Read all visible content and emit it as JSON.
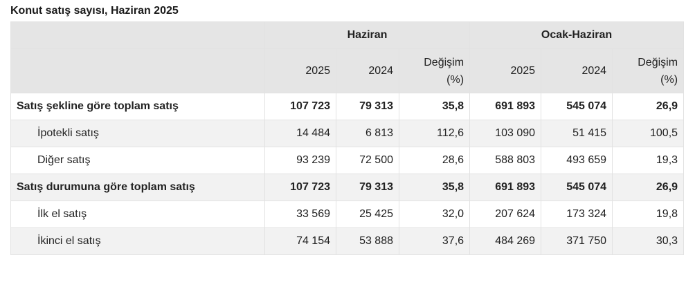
{
  "title": "Konut satış sayısı, Haziran 2025",
  "header": {
    "group1": "Haziran",
    "group2": "Ocak-Haziran",
    "cols": [
      "2025",
      "2024",
      "Değişim\n(%)",
      "2025",
      "2024",
      "Değişim\n(%)"
    ]
  },
  "rows": [
    {
      "label": "Satış şekline göre toplam satış",
      "values": [
        "107 723",
        "79 313",
        "35,8",
        "691 893",
        "545 074",
        "26,9"
      ]
    },
    {
      "label": "İpotekli satış",
      "values": [
        "14 484",
        "6 813",
        "112,6",
        "103 090",
        "51 415",
        "100,5"
      ]
    },
    {
      "label": "Diğer satış",
      "values": [
        "93 239",
        "72 500",
        "28,6",
        "588 803",
        "493 659",
        "19,3"
      ]
    },
    {
      "label": "Satış durumuna göre toplam satış",
      "values": [
        "107 723",
        "79 313",
        "35,8",
        "691 893",
        "545 074",
        "26,9"
      ]
    },
    {
      "label": "İlk el satış",
      "values": [
        "33 569",
        "25 425",
        "32,0",
        "207 624",
        "173 324",
        "19,8"
      ]
    },
    {
      "label": "İkinci el satış",
      "values": [
        "74 154",
        "53 888",
        "37,6",
        "484 269",
        "371 750",
        "30,3"
      ]
    }
  ]
}
